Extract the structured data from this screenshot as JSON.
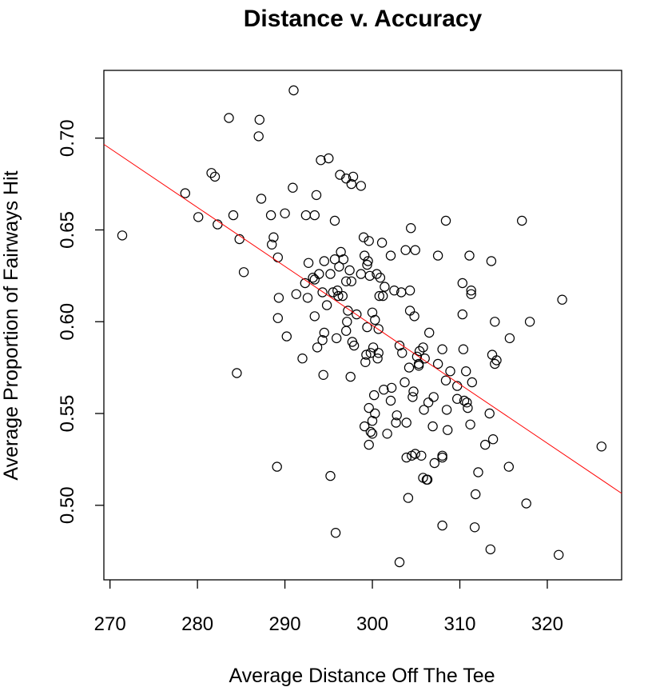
{
  "chart_data": {
    "type": "scatter",
    "title": "Distance v. Accuracy",
    "xlabel": "Average Distance Off The Tee",
    "ylabel": "Average Proportion of Fairways Hit",
    "xlim": [
      269.3,
      328.5
    ],
    "ylim": [
      0.4594,
      0.7369
    ],
    "xticks": [
      270,
      280,
      290,
      300,
      310,
      320
    ],
    "yticks": [
      0.5,
      0.55,
      0.6,
      0.65,
      0.7
    ],
    "ytick_labels": [
      "0.50",
      "0.55",
      "0.60",
      "0.65",
      "0.70"
    ],
    "grid": false,
    "regression_line": {
      "color": "#ff0000",
      "x": [
        269.3,
        328.5
      ],
      "y": [
        0.6966,
        0.5065
      ]
    },
    "points": [
      [
        271.4,
        0.647
      ],
      [
        278.6,
        0.67
      ],
      [
        280.1,
        0.657
      ],
      [
        281.6,
        0.681
      ],
      [
        282.0,
        0.679
      ],
      [
        282.3,
        0.653
      ],
      [
        283.6,
        0.711
      ],
      [
        284.1,
        0.658
      ],
      [
        284.5,
        0.572
      ],
      [
        284.8,
        0.645
      ],
      [
        285.3,
        0.627
      ],
      [
        287.0,
        0.701
      ],
      [
        287.1,
        0.71
      ],
      [
        287.3,
        0.667
      ],
      [
        288.4,
        0.658
      ],
      [
        288.5,
        0.642
      ],
      [
        288.7,
        0.646
      ],
      [
        289.1,
        0.521
      ],
      [
        289.2,
        0.635
      ],
      [
        289.2,
        0.602
      ],
      [
        289.3,
        0.613
      ],
      [
        290.0,
        0.659
      ],
      [
        290.2,
        0.592
      ],
      [
        290.9,
        0.673
      ],
      [
        291.0,
        0.726
      ],
      [
        291.3,
        0.615
      ],
      [
        292.0,
        0.58
      ],
      [
        292.3,
        0.621
      ],
      [
        292.4,
        0.658
      ],
      [
        292.6,
        0.613
      ],
      [
        292.7,
        0.632
      ],
      [
        293.2,
        0.624
      ],
      [
        293.4,
        0.623
      ],
      [
        293.4,
        0.603
      ],
      [
        293.4,
        0.658
      ],
      [
        293.6,
        0.669
      ],
      [
        293.7,
        0.586
      ],
      [
        293.9,
        0.626
      ],
      [
        294.1,
        0.688
      ],
      [
        294.3,
        0.616
      ],
      [
        294.3,
        0.59
      ],
      [
        294.4,
        0.571
      ],
      [
        294.5,
        0.594
      ],
      [
        294.5,
        0.633
      ],
      [
        294.8,
        0.609
      ],
      [
        295.0,
        0.689
      ],
      [
        295.2,
        0.626
      ],
      [
        295.2,
        0.516
      ],
      [
        295.5,
        0.616
      ],
      [
        295.7,
        0.634
      ],
      [
        295.7,
        0.655
      ],
      [
        295.8,
        0.485
      ],
      [
        295.9,
        0.591
      ],
      [
        296.0,
        0.617
      ],
      [
        296.1,
        0.614
      ],
      [
        296.2,
        0.63
      ],
      [
        296.3,
        0.68
      ],
      [
        296.4,
        0.638
      ],
      [
        296.6,
        0.614
      ],
      [
        296.7,
        0.634
      ],
      [
        297.0,
        0.622
      ],
      [
        297.0,
        0.678
      ],
      [
        297.0,
        0.595
      ],
      [
        297.1,
        0.6
      ],
      [
        297.2,
        0.606
      ],
      [
        297.4,
        0.628
      ],
      [
        297.5,
        0.57
      ],
      [
        297.6,
        0.675
      ],
      [
        297.6,
        0.622
      ],
      [
        297.7,
        0.589
      ],
      [
        297.8,
        0.679
      ],
      [
        297.9,
        0.587
      ],
      [
        298.2,
        0.604
      ],
      [
        298.7,
        0.674
      ],
      [
        298.7,
        0.626
      ],
      [
        299.0,
        0.646
      ],
      [
        299.1,
        0.636
      ],
      [
        299.1,
        0.543
      ],
      [
        299.2,
        0.578
      ],
      [
        299.3,
        0.582
      ],
      [
        299.4,
        0.631
      ],
      [
        299.4,
        0.597
      ],
      [
        299.5,
        0.633
      ],
      [
        299.6,
        0.644
      ],
      [
        299.6,
        0.553
      ],
      [
        299.6,
        0.533
      ],
      [
        299.7,
        0.625
      ],
      [
        299.8,
        0.54
      ],
      [
        299.8,
        0.583
      ],
      [
        300.0,
        0.605
      ],
      [
        300.0,
        0.539
      ],
      [
        300.0,
        0.546
      ],
      [
        300.1,
        0.586
      ],
      [
        300.2,
        0.56
      ],
      [
        300.3,
        0.601
      ],
      [
        300.3,
        0.55
      ],
      [
        300.5,
        0.626
      ],
      [
        300.6,
        0.58
      ],
      [
        300.7,
        0.583
      ],
      [
        300.7,
        0.596
      ],
      [
        300.8,
        0.614
      ],
      [
        300.9,
        0.624
      ],
      [
        301.1,
        0.643
      ],
      [
        301.2,
        0.614
      ],
      [
        301.3,
        0.563
      ],
      [
        301.4,
        0.619
      ],
      [
        301.7,
        0.539
      ],
      [
        302.1,
        0.636
      ],
      [
        302.1,
        0.557
      ],
      [
        302.2,
        0.564
      ],
      [
        302.5,
        0.617
      ],
      [
        302.7,
        0.545
      ],
      [
        302.8,
        0.549
      ],
      [
        303.1,
        0.469
      ],
      [
        303.1,
        0.587
      ],
      [
        303.3,
        0.616
      ],
      [
        303.4,
        0.583
      ],
      [
        303.7,
        0.567
      ],
      [
        303.8,
        0.639
      ],
      [
        303.9,
        0.545
      ],
      [
        303.9,
        0.526
      ],
      [
        304.1,
        0.504
      ],
      [
        304.2,
        0.575
      ],
      [
        304.3,
        0.617
      ],
      [
        304.3,
        0.606
      ],
      [
        304.4,
        0.651
      ],
      [
        304.5,
        0.527
      ],
      [
        304.6,
        0.559
      ],
      [
        304.7,
        0.562
      ],
      [
        304.8,
        0.603
      ],
      [
        304.9,
        0.528
      ],
      [
        304.9,
        0.639
      ],
      [
        305.1,
        0.581
      ],
      [
        305.3,
        0.577
      ],
      [
        305.3,
        0.576
      ],
      [
        305.4,
        0.584
      ],
      [
        305.6,
        0.527
      ],
      [
        305.8,
        0.586
      ],
      [
        305.8,
        0.515
      ],
      [
        305.9,
        0.552
      ],
      [
        306.0,
        0.58
      ],
      [
        306.2,
        0.514
      ],
      [
        306.3,
        0.514
      ],
      [
        306.4,
        0.556
      ],
      [
        306.5,
        0.594
      ],
      [
        306.9,
        0.543
      ],
      [
        307.0,
        0.559
      ],
      [
        307.1,
        0.523
      ],
      [
        307.5,
        0.636
      ],
      [
        307.5,
        0.577
      ],
      [
        308.0,
        0.585
      ],
      [
        308.0,
        0.526
      ],
      [
        308.0,
        0.489
      ],
      [
        308.0,
        0.527
      ],
      [
        308.4,
        0.568
      ],
      [
        308.4,
        0.655
      ],
      [
        308.5,
        0.552
      ],
      [
        308.6,
        0.541
      ],
      [
        308.9,
        0.573
      ],
      [
        309.7,
        0.558
      ],
      [
        309.7,
        0.565
      ],
      [
        310.3,
        0.621
      ],
      [
        310.3,
        0.604
      ],
      [
        310.4,
        0.585
      ],
      [
        310.5,
        0.557
      ],
      [
        310.7,
        0.573
      ],
      [
        310.8,
        0.556
      ],
      [
        310.9,
        0.553
      ],
      [
        311.1,
        0.636
      ],
      [
        311.2,
        0.544
      ],
      [
        311.3,
        0.617
      ],
      [
        311.3,
        0.615
      ],
      [
        311.4,
        0.567
      ],
      [
        311.7,
        0.488
      ],
      [
        311.8,
        0.506
      ],
      [
        312.1,
        0.518
      ],
      [
        312.9,
        0.533
      ],
      [
        313.4,
        0.55
      ],
      [
        313.5,
        0.476
      ],
      [
        313.6,
        0.633
      ],
      [
        313.7,
        0.582
      ],
      [
        313.8,
        0.536
      ],
      [
        314.0,
        0.6
      ],
      [
        314.0,
        0.577
      ],
      [
        314.2,
        0.579
      ],
      [
        315.6,
        0.521
      ],
      [
        315.7,
        0.591
      ],
      [
        317.1,
        0.655
      ],
      [
        317.6,
        0.501
      ],
      [
        318.0,
        0.6
      ],
      [
        321.3,
        0.473
      ],
      [
        321.7,
        0.612
      ],
      [
        326.2,
        0.532
      ]
    ]
  }
}
